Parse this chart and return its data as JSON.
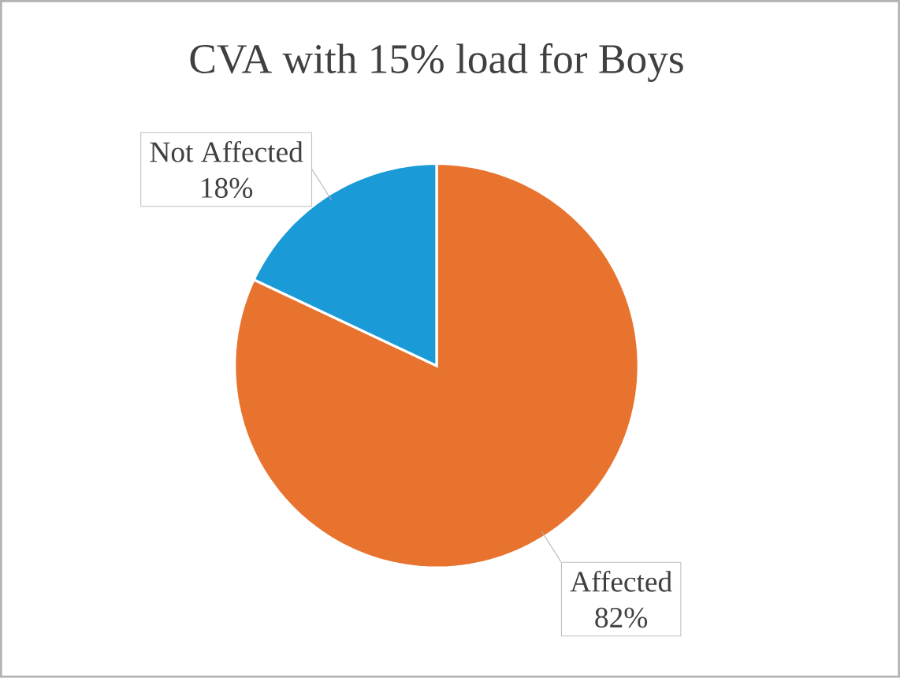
{
  "chart_data": {
    "type": "pie",
    "title": "CVA with 15% load for Boys",
    "categories": [
      "Affected",
      "Not Affected"
    ],
    "values": [
      82,
      18
    ],
    "colors": [
      "#e8732f",
      "#1a9ad6"
    ],
    "value_labels": [
      "82%",
      "18%"
    ]
  }
}
